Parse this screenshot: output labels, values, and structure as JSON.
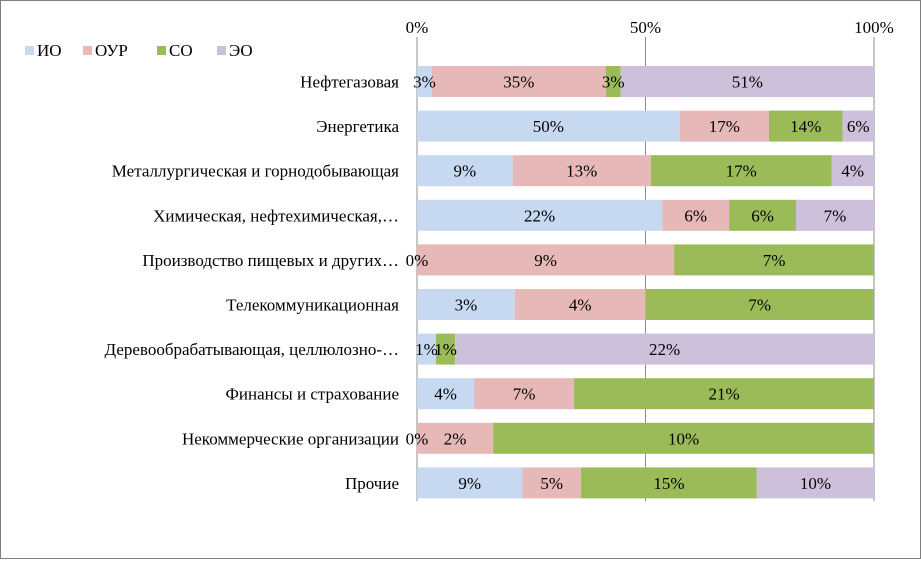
{
  "chart_data": {
    "type": "bar",
    "orientation": "horizontal",
    "stacked": "percent",
    "title": "",
    "xlabel": "",
    "ylabel": "",
    "xlim": [
      0,
      100
    ],
    "x_ticks": [
      "0%",
      "50%",
      "100%"
    ],
    "x_tick_values": [
      0,
      50,
      100
    ],
    "legend_position": "top-left",
    "grid": true,
    "categories": [
      "Нефтегазовая",
      "Энергетика",
      "Металлургическая и горнодобывающая",
      "Химическая, нефтехимическая,…",
      "Производство пищевых и других…",
      "Телекоммуникационная",
      "Деревообрабатывающая, целлюлозно-…",
      "Финансы и страхование",
      "Некоммерческие организации",
      "Прочие"
    ],
    "series": [
      {
        "name": "ИО",
        "color": "#c6d9f1",
        "values": [
          3,
          50,
          9,
          22,
          0,
          3,
          1,
          4,
          0,
          9
        ],
        "labels": [
          "3%",
          "50%",
          "9%",
          "22%",
          "0%",
          "3%",
          "1%",
          "4%",
          "0%",
          "9%"
        ]
      },
      {
        "name": "ОУР",
        "color": "#e6b9b8",
        "values": [
          35,
          17,
          13,
          6,
          9,
          4,
          0,
          7,
          2,
          5
        ],
        "labels": [
          "35%",
          "17%",
          "13%",
          "6%",
          "9%",
          "4%",
          "",
          "7%",
          "2%",
          "5%"
        ]
      },
      {
        "name": "СО",
        "color": "#9bbb59",
        "values": [
          3,
          14,
          17,
          6,
          7,
          7,
          1,
          21,
          10,
          15
        ],
        "labels": [
          "3%",
          "14%",
          "17%",
          "6%",
          "7%",
          "7%",
          "1%",
          "21%",
          "10%",
          "15%"
        ]
      },
      {
        "name": "ЭО",
        "color": "#ccc0da",
        "values": [
          51,
          6,
          4,
          7,
          0,
          0,
          22,
          0,
          0,
          10
        ],
        "labels": [
          "51%",
          "6%",
          "4%",
          "7%",
          "",
          "",
          "22%",
          "",
          "",
          "10%"
        ]
      }
    ]
  },
  "colors": {
    "gridline": "#8c8c8c",
    "border": "#7f7f7f"
  }
}
